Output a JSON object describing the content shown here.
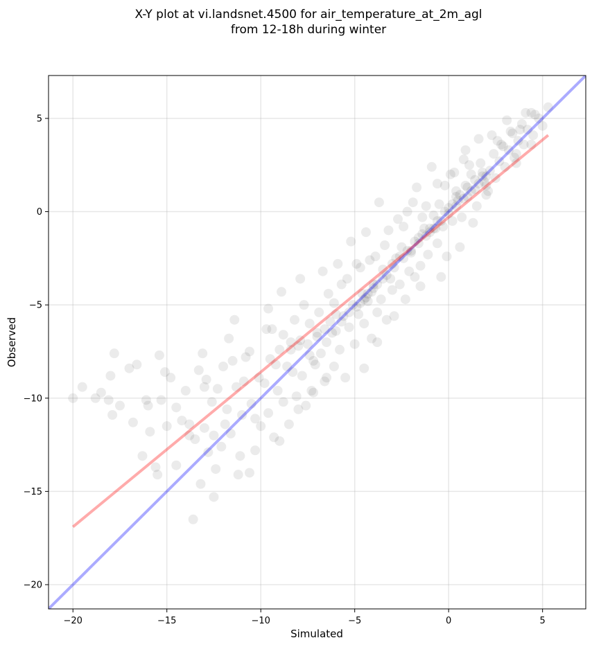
{
  "chart_data": {
    "type": "scatter",
    "title_line1": "X-Y plot at vi.landsnet.4500 for air_temperature_at_2m_agl",
    "title_line2": "from 12-18h during winter",
    "xlabel": "Simulated",
    "ylabel": "Observed",
    "xlim": [
      -21.3,
      7.3
    ],
    "ylim": [
      -21.3,
      7.3
    ],
    "xticks": [
      -20,
      -15,
      -10,
      -5,
      0,
      5
    ],
    "yticks": [
      -20,
      -15,
      -10,
      -5,
      0,
      5
    ],
    "xtick_labels": [
      "−20",
      "−15",
      "−10",
      "−5",
      "0",
      "5"
    ],
    "ytick_labels": [
      "−20",
      "−15",
      "−10",
      "−5",
      "0",
      "5"
    ],
    "grid": true,
    "point_color": "#000000",
    "point_opacity": 0.08,
    "lines": [
      {
        "x": [
          -21.3,
          7.3
        ],
        "y": [
          -21.3,
          7.3
        ],
        "color": "#0000ff",
        "opacity": 0.33
      },
      {
        "x": [
          -20.0,
          5.3
        ],
        "y": [
          -16.9,
          4.1
        ],
        "color": "#ff0000",
        "opacity": 0.33
      }
    ],
    "points_x": [
      -20.0,
      -19.5,
      -18.8,
      -18.5,
      -18.1,
      -18.0,
      -17.9,
      -17.5,
      -17.0,
      -16.8,
      -16.3,
      -16.1,
      -16.0,
      -15.9,
      -15.6,
      -15.5,
      -15.3,
      -15.1,
      -15.0,
      -14.8,
      -14.5,
      -14.2,
      -14.0,
      -13.8,
      -13.5,
      -13.3,
      -13.2,
      -13.0,
      -12.8,
      -12.6,
      -12.5,
      -12.3,
      -12.1,
      -12.0,
      -11.8,
      -11.6,
      -11.5,
      -11.3,
      -11.1,
      -11.0,
      -10.8,
      -10.6,
      -10.5,
      -10.3,
      -10.1,
      -10.0,
      -9.8,
      -9.6,
      -9.5,
      -9.3,
      -9.1,
      -9.0,
      -8.8,
      -8.6,
      -8.5,
      -8.3,
      -8.1,
      -8.0,
      -7.8,
      -7.6,
      -7.5,
      -7.3,
      -7.1,
      -7.0,
      -6.8,
      -6.6,
      -6.5,
      -6.3,
      -6.1,
      -6.0,
      -5.8,
      -5.6,
      -5.5,
      -5.3,
      -5.1,
      -5.0,
      -4.8,
      -4.6,
      -4.5,
      -4.3,
      -4.1,
      -4.0,
      -3.8,
      -3.6,
      -3.5,
      -3.3,
      -3.1,
      -3.0,
      -2.8,
      -2.6,
      -2.5,
      -2.3,
      -2.1,
      -2.0,
      -1.8,
      -1.6,
      -1.5,
      -1.3,
      -1.1,
      -1.0,
      -0.8,
      -0.6,
      -0.5,
      -0.3,
      -0.1,
      0.0,
      0.2,
      0.4,
      0.5,
      0.7,
      0.9,
      1.0,
      1.2,
      1.4,
      1.5,
      1.7,
      1.9,
      2.0,
      2.2,
      2.4,
      2.5,
      2.7,
      2.9,
      3.0,
      3.2,
      3.4,
      3.5,
      3.7,
      3.9,
      4.0,
      4.2,
      4.4,
      4.5,
      4.8,
      5.0,
      5.3,
      -14.5,
      -13.8,
      -12.4,
      -12.5,
      -11.2,
      -10.3,
      -9.0,
      -8.0,
      -7.2,
      -6.5,
      -4.5,
      -3.8,
      -2.9,
      -1.5,
      -0.4,
      0.6,
      1.3,
      2.1,
      3.6,
      4.4,
      -17.8,
      -16.6,
      -15.4,
      -13.0,
      -11.7,
      -10.6,
      -9.4,
      -8.2,
      -7.7,
      -6.9,
      -6.1,
      -5.4,
      -4.9,
      -4.2,
      -3.4,
      -2.7,
      -1.9,
      -1.2,
      -0.7,
      -0.2,
      0.3,
      0.8,
      1.6,
      2.3,
      3.1,
      3.8,
      4.6,
      -13.1,
      -11.4,
      -9.7,
      -8.9,
      -7.9,
      -6.7,
      -5.9,
      -5.2,
      -4.4,
      -3.7,
      -2.4,
      -1.7,
      -0.9,
      0.1,
      0.9,
      1.8,
      2.6,
      3.3,
      4.1,
      -12.9,
      -10.9,
      -9.2,
      -8.4,
      -7.4,
      -6.4,
      -5.7,
      -4.7,
      -3.9,
      -3.2,
      -2.2,
      -1.4,
      -0.6,
      0.4,
      1.1,
      2.0,
      2.8,
      3.6,
      -4.3,
      -4.0,
      -3.5,
      -3.0,
      -2.6,
      -2.2,
      -1.8,
      -1.4,
      -1.0,
      -0.6,
      -0.2,
      0.2,
      0.6,
      1.0,
      1.4,
      1.8,
      -4.7,
      -4.4,
      -4.1,
      -3.8,
      -3.3,
      -2.9,
      -2.4,
      -2.0,
      -1.6,
      -1.2,
      -0.8,
      -0.4,
      0.0,
      0.4,
      0.8,
      1.2,
      1.6,
      2.0,
      -8.4,
      -7.9,
      -7.4,
      -7.0,
      -6.6,
      -6.2,
      -5.7,
      -5.3,
      -4.9,
      -4.5,
      -6.0,
      -7.2,
      -8.8,
      -9.6,
      -11.9,
      -13.6
    ],
    "points_y": [
      -10.0,
      -9.4,
      -10.0,
      -9.7,
      -10.1,
      -8.8,
      -10.9,
      -10.4,
      -8.4,
      -11.3,
      -13.1,
      -10.1,
      -10.4,
      -11.8,
      -13.7,
      -14.1,
      -10.1,
      -8.6,
      -11.5,
      -8.9,
      -13.6,
      -11.2,
      -9.6,
      -12.0,
      -12.2,
      -8.5,
      -14.6,
      -11.6,
      -12.9,
      -10.2,
      -15.3,
      -9.5,
      -12.6,
      -8.3,
      -10.6,
      -11.9,
      -8.0,
      -9.4,
      -13.1,
      -10.9,
      -7.8,
      -14.0,
      -10.3,
      -12.8,
      -8.9,
      -11.5,
      -9.2,
      -10.8,
      -7.9,
      -12.1,
      -9.6,
      -7.4,
      -10.2,
      -8.3,
      -11.4,
      -8.6,
      -9.9,
      -7.2,
      -8.8,
      -10.4,
      -7.1,
      -9.6,
      -8.2,
      -6.5,
      -7.6,
      -9.1,
      -7.0,
      -5.9,
      -8.3,
      -6.4,
      -7.4,
      -5.6,
      -8.9,
      -6.2,
      -5.0,
      -7.1,
      -5.5,
      -4.4,
      -6.0,
      -4.8,
      -6.8,
      -3.9,
      -5.4,
      -4.7,
      -3.1,
      -5.8,
      -3.6,
      -4.2,
      -2.5,
      -3.9,
      -1.9,
      -4.7,
      -3.2,
      -2.2,
      -3.5,
      -1.4,
      -2.9,
      -0.9,
      -2.3,
      -1.1,
      -0.2,
      -1.7,
      0.4,
      -0.8,
      -2.4,
      0.2,
      -0.5,
      1.1,
      0.6,
      -0.3,
      1.4,
      0.8,
      2.0,
      1.2,
      0.3,
      2.6,
      1.6,
      0.9,
      2.2,
      3.1,
      1.8,
      2.7,
      3.5,
      2.4,
      3.3,
      4.2,
      2.9,
      3.8,
      4.7,
      3.6,
      4.4,
      5.3,
      4.1,
      5.0,
      4.6,
      5.6,
      -10.5,
      -11.4,
      -13.8,
      -12.0,
      -14.1,
      -11.1,
      -12.3,
      -10.6,
      -9.7,
      -8.9,
      -8.4,
      -7.0,
      -5.6,
      -4.0,
      -3.5,
      -1.9,
      -0.6,
      1.1,
      2.6,
      3.6,
      -7.6,
      -8.2,
      -7.7,
      -9.4,
      -6.8,
      -7.5,
      -6.3,
      -5.8,
      -5.0,
      -5.4,
      -4.9,
      -3.6,
      -2.8,
      -2.6,
      -1.8,
      -0.4,
      0.5,
      0.3,
      -0.9,
      1.4,
      2.1,
      2.8,
      3.9,
      4.1,
      4.9,
      4.4,
      5.2,
      -7.6,
      -5.8,
      -6.3,
      -4.3,
      -3.6,
      -3.2,
      -2.8,
      -1.6,
      -1.1,
      0.5,
      -0.8,
      1.3,
      2.4,
      2.0,
      3.3,
      1.9,
      3.8,
      4.3,
      5.3,
      -9.0,
      -9.1,
      -8.2,
      -7.0,
      -6.0,
      -4.4,
      -3.9,
      -3.0,
      -2.4,
      -1.0,
      0.0,
      -0.3,
      1.5,
      0.8,
      2.5,
      1.4,
      3.6,
      3.1,
      -4.4,
      -4.1,
      -3.6,
      -2.8,
      -2.4,
      -2.1,
      -1.6,
      -1.2,
      -0.9,
      -0.5,
      0.0,
      0.4,
      0.9,
      1.3,
      1.7,
      2.1,
      -4.9,
      -4.6,
      -4.3,
      -3.9,
      -3.4,
      -3.0,
      -2.5,
      -2.1,
      -1.7,
      -1.3,
      -0.9,
      -0.5,
      -0.1,
      0.3,
      0.7,
      1.1,
      1.5,
      1.9,
      -7.4,
      -6.9,
      -7.7,
      -6.7,
      -6.3,
      -6.5,
      -5.9,
      -5.4,
      -5.1,
      -4.7,
      -5.5,
      -8.0,
      -6.6,
      -5.2,
      -11.4,
      -16.5
    ]
  }
}
